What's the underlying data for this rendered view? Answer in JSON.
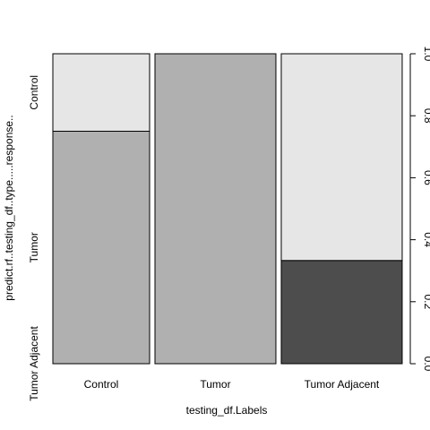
{
  "chart_data": {
    "type": "bar",
    "subtype": "spineplot",
    "xlabel": "testing_df.Labels",
    "ylabel": "predict.rf..testing_df..type.....response..",
    "categories": [
      "Control",
      "Tumor",
      "Tumor Adjacent"
    ],
    "category_widths": [
      0.2857,
      0.3571,
      0.3571
    ],
    "stack_levels": [
      "Tumor Adjacent",
      "Tumor",
      "Control"
    ],
    "series": [
      {
        "name": "Tumor Adjacent",
        "values": [
          0,
          0,
          0.333
        ]
      },
      {
        "name": "Tumor",
        "values": [
          0.75,
          1.0,
          0
        ]
      },
      {
        "name": "Control",
        "values": [
          0.25,
          0,
          0.667
        ]
      }
    ],
    "colors": {
      "Tumor Adjacent": "#4d4d4d",
      "Tumor": "#b0b0b0",
      "Control": "#e6e6e6"
    },
    "left_axis_labels": [
      "Tumor Adjacent",
      "Tumor",
      "Control"
    ],
    "right_axis": {
      "ylim": [
        0,
        1
      ],
      "ticks": [
        "0.0",
        "0.2",
        "0.4",
        "0.6",
        "0.8",
        "1.0"
      ]
    },
    "grid": false,
    "legend": "none"
  }
}
